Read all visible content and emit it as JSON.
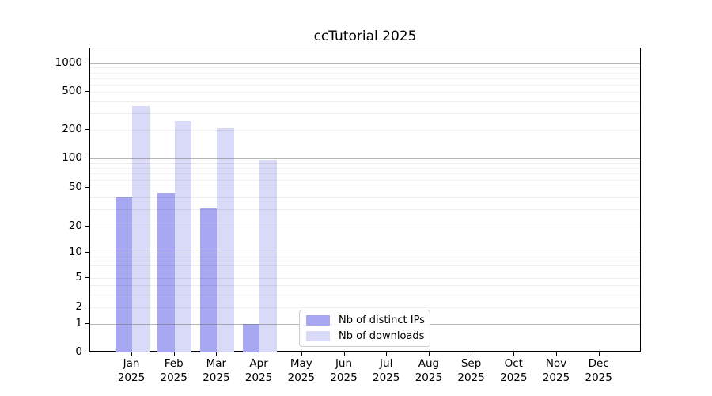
{
  "title": "ccTutorial 2025",
  "chart_data": {
    "type": "bar",
    "title": "ccTutorial 2025",
    "scale": "symlog",
    "categories": [
      "Jan",
      "Feb",
      "Mar",
      "Apr",
      "May",
      "Jun",
      "Jul",
      "Aug",
      "Sep",
      "Oct",
      "Nov",
      "Dec"
    ],
    "year_label": "2025",
    "series": [
      {
        "name": "Nb of distinct IPs",
        "color": "#a7a7f2",
        "values": [
          40,
          44,
          31,
          1,
          0,
          0,
          0,
          0,
          0,
          0,
          0,
          0
        ]
      },
      {
        "name": "Nb of downloads",
        "color": "#d9d9f8",
        "values": [
          356,
          248,
          207,
          96,
          0,
          0,
          0,
          0,
          0,
          0,
          0,
          0
        ]
      }
    ],
    "y_ticks": [
      0,
      1,
      2,
      5,
      10,
      20,
      50,
      100,
      200,
      500,
      1000
    ],
    "ylim": [
      0,
      1440
    ],
    "grid": {
      "major": true,
      "minor": true
    },
    "legend_position": "bottom-center"
  },
  "legend": {
    "items": [
      {
        "label": "Nb of distinct IPs",
        "color": "#a7a7f2"
      },
      {
        "label": "Nb of downloads",
        "color": "#d9d9f8"
      }
    ]
  },
  "colors": {
    "background": "#ffffff",
    "spine": "#000000",
    "major_grid": "#b5b5b5",
    "minor_grid": "#ededed",
    "text": "#000000",
    "legend_border": "#cccccc"
  }
}
